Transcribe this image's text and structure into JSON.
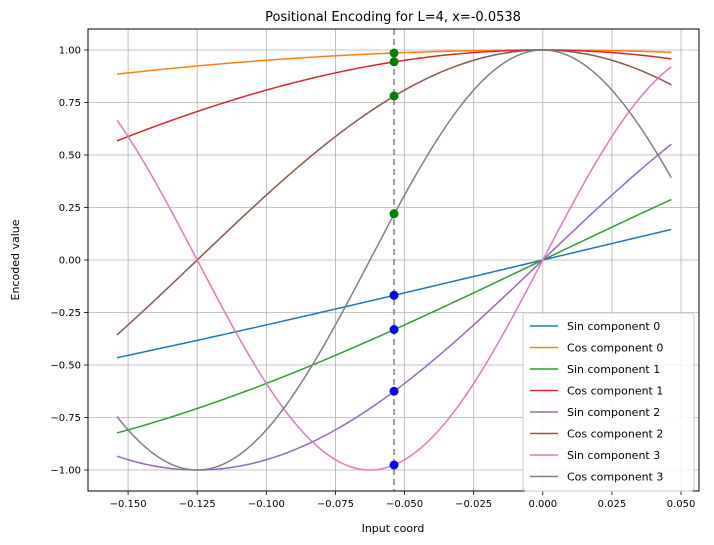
{
  "chart_data": {
    "type": "line",
    "title": "Positional Encoding for L=4, x=-0.0538",
    "xlabel": "Input coord",
    "ylabel": "Encoded value",
    "xlim": [
      -0.1645,
      0.0565
    ],
    "ylim": [
      -1.1,
      1.1
    ],
    "x_domain": [
      -0.154,
      0.0465
    ],
    "x_marker": -0.0538,
    "marker_line_color": "#7f7f7f",
    "grid": true,
    "legend_position": "lower-right",
    "xticks": [
      -0.15,
      -0.125,
      -0.1,
      -0.075,
      -0.05,
      -0.025,
      0.0,
      0.025,
      0.05
    ],
    "xtick_labels": [
      "−0.150",
      "−0.125",
      "−0.100",
      "−0.075",
      "−0.050",
      "−0.025",
      "0.000",
      "0.025",
      "0.050"
    ],
    "yticks": [
      -1.0,
      -0.75,
      -0.5,
      -0.25,
      0.0,
      0.25,
      0.5,
      0.75,
      1.0
    ],
    "ytick_labels": [
      "−1.00",
      "−0.75",
      "−0.50",
      "−0.25",
      "0.00",
      "0.25",
      "0.50",
      "0.75",
      "1.00"
    ],
    "series": [
      {
        "name": "Sin component 0",
        "fn": "sin",
        "freq": 3.14159,
        "color": "#1f77b4"
      },
      {
        "name": "Cos component 0",
        "fn": "cos",
        "freq": 3.14159,
        "color": "#ff7f0e"
      },
      {
        "name": "Sin component 1",
        "fn": "sin",
        "freq": 6.28319,
        "color": "#2ca02c"
      },
      {
        "name": "Cos component 1",
        "fn": "cos",
        "freq": 6.28319,
        "color": "#d62728"
      },
      {
        "name": "Sin component 2",
        "fn": "sin",
        "freq": 12.56637,
        "color": "#9467bd"
      },
      {
        "name": "Cos component 2",
        "fn": "cos",
        "freq": 12.56637,
        "color": "#8c564b"
      },
      {
        "name": "Sin component 3",
        "fn": "sin",
        "freq": 25.13274,
        "color": "#e377c2"
      },
      {
        "name": "Cos component 3",
        "fn": "cos",
        "freq": 25.13274,
        "color": "#7f7f7f"
      }
    ],
    "markers": {
      "sin_color": "#0000ff",
      "cos_color": "#008000",
      "sin_values": [
        -0.168,
        -0.331,
        -0.625,
        -0.976
      ],
      "cos_values": [
        0.986,
        0.944,
        0.781,
        0.22
      ]
    }
  }
}
